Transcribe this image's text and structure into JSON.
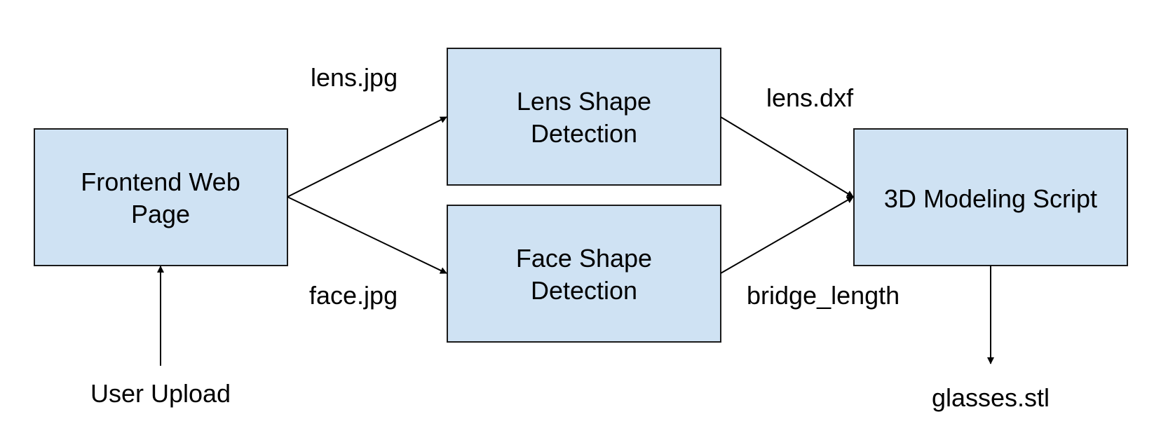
{
  "colors": {
    "box_fill": "#cfe2f3",
    "box_stroke": "#1a1a1a",
    "line": "#000000",
    "background": "#ffffff"
  },
  "nodes": {
    "frontend": {
      "line1": "Frontend Web",
      "line2": "Page"
    },
    "lens_detect": {
      "line1": "Lens Shape",
      "line2": "Detection"
    },
    "face_detect": {
      "line1": "Face Shape",
      "line2": "Detection"
    },
    "modeling": {
      "line1": "3D Modeling Script"
    }
  },
  "edge_labels": {
    "lens_jpg": "lens.jpg",
    "face_jpg": "face.jpg",
    "lens_dxf": "lens.dxf",
    "bridge_length": "bridge_length",
    "user_upload": "User Upload",
    "glasses_stl": "glasses.stl"
  }
}
